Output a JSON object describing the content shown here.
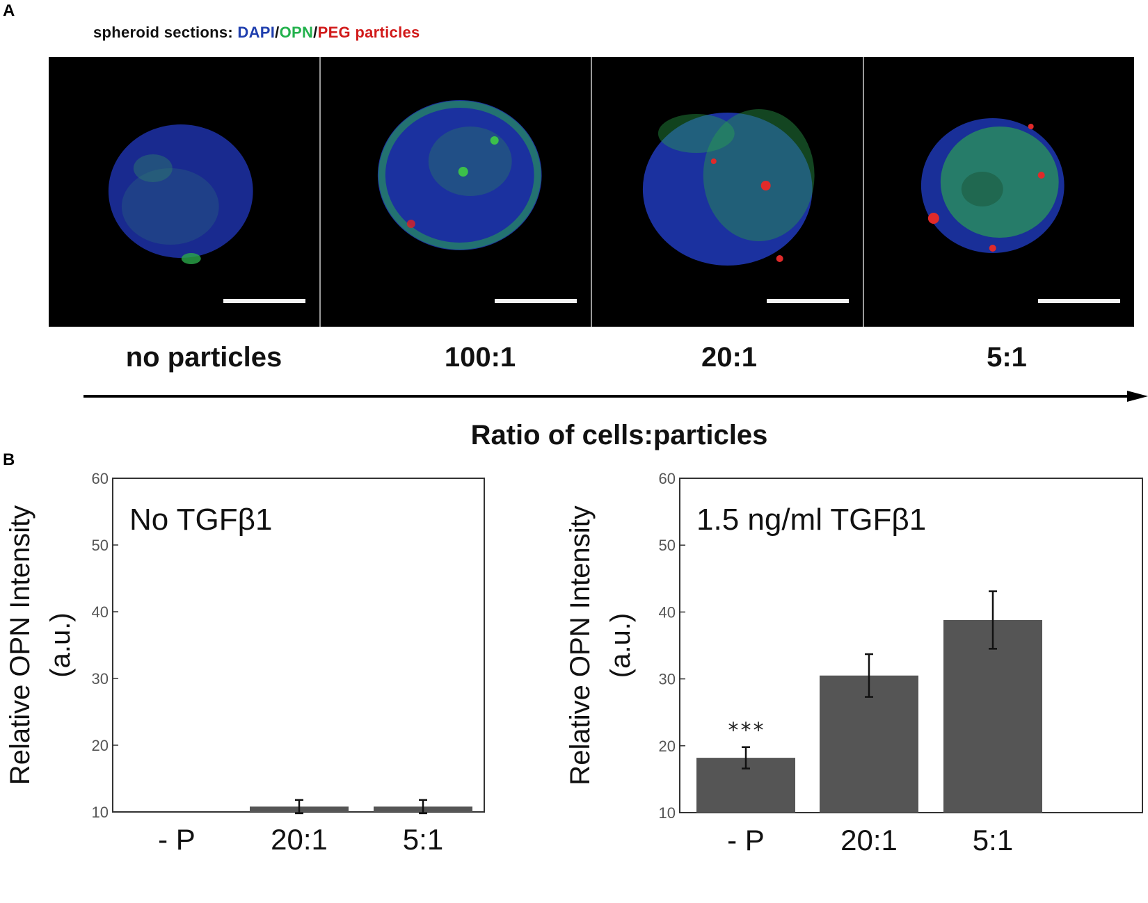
{
  "panel_a": {
    "letter": "A",
    "legend": [
      {
        "text": "spheroid sections: ",
        "color": "#111111"
      },
      {
        "text": "DAPI",
        "color": "#1f3fae"
      },
      {
        "text": "/",
        "color": "#111111"
      },
      {
        "text": "OPN",
        "color": "#22b14c"
      },
      {
        "text": "/",
        "color": "#111111"
      },
      {
        "text": "PEG particles",
        "color": "#d11a1a"
      }
    ],
    "conditions": [
      "no particles",
      "100:1",
      "20:1",
      "5:1"
    ],
    "axis_title": "Ratio of cells:particles"
  },
  "panel_b": {
    "letter": "B"
  },
  "chart_data": [
    {
      "type": "bar",
      "annotation": "No TGFβ1",
      "categories": [
        "- P",
        "20:1",
        "5:1"
      ],
      "values": [
        10.0,
        10.8,
        10.8
      ],
      "errors": [
        0,
        1.0,
        1.0
      ],
      "significance": [
        "",
        "",
        ""
      ],
      "ylabel_lines": [
        "Relative OPN Intensity",
        "(a.u.)"
      ],
      "ylim": [
        10,
        60
      ],
      "yticks": [
        10,
        20,
        30,
        40,
        50,
        60
      ],
      "bar_color": "#555555"
    },
    {
      "type": "bar",
      "annotation": "1.5 ng/ml TGFβ1",
      "categories": [
        "- P",
        "20:1",
        "5:1"
      ],
      "values": [
        18.2,
        30.5,
        38.8
      ],
      "errors": [
        1.6,
        3.2,
        4.3
      ],
      "significance": [
        "***",
        "",
        ""
      ],
      "ylabel_lines": [
        "Relative OPN Intensity",
        "(a.u.)"
      ],
      "ylim": [
        10,
        60
      ],
      "yticks": [
        10,
        20,
        30,
        40,
        50,
        60
      ],
      "bar_color": "#555555"
    }
  ]
}
